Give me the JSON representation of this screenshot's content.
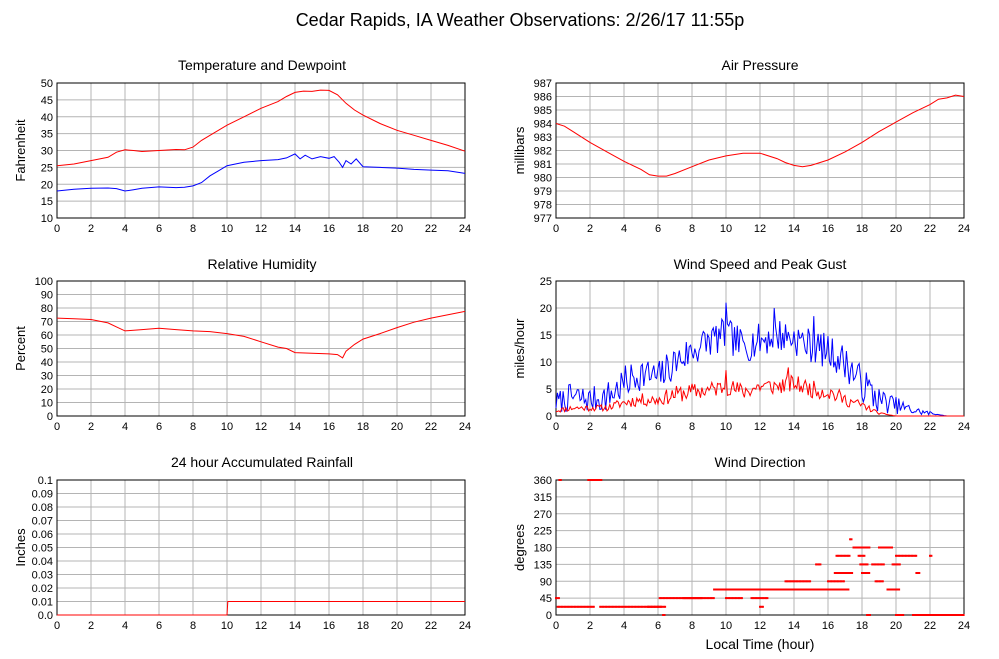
{
  "figure_title": "Cedar Rapids, IA Weather Observations: 2/26/17 11:55p",
  "xlabel": "Local Time (hour)",
  "colors": {
    "red": "#ff0000",
    "blue": "#0000ff",
    "grid": "#b4b4b4",
    "axis": "#000000"
  },
  "chart_data": [
    {
      "id": "temp",
      "type": "line",
      "title": "Temperature and Dewpoint",
      "ylabel": "Fahrenheit",
      "xlim": [
        0,
        24
      ],
      "ylim": [
        10,
        50
      ],
      "xticks": [
        "0",
        "2",
        "4",
        "6",
        "8",
        "10",
        "12",
        "14",
        "16",
        "18",
        "20",
        "22",
        "24"
      ],
      "yticks": [
        "10",
        "15",
        "20",
        "25",
        "30",
        "35",
        "40",
        "45",
        "50"
      ],
      "series": [
        {
          "color": "#ff0000",
          "style": "line",
          "x": [
            0,
            1,
            2,
            3,
            3.5,
            4,
            4.5,
            5,
            6,
            7,
            7.5,
            8,
            8.5,
            9,
            10,
            11,
            12,
            13,
            13.5,
            14,
            14.5,
            15,
            15.5,
            16,
            16.5,
            17,
            17.5,
            18,
            19,
            20,
            21,
            22,
            23,
            24
          ],
          "y": [
            25.5,
            26,
            27,
            28,
            29.5,
            30.2,
            30,
            29.7,
            30,
            30.3,
            30.2,
            31,
            33,
            34.5,
            37.5,
            40,
            42.5,
            44.5,
            46,
            47.2,
            47.6,
            47.5,
            47.9,
            47.8,
            46.5,
            44,
            42,
            40.5,
            38,
            36,
            34.5,
            33,
            31.5,
            29.8
          ]
        },
        {
          "color": "#0000ff",
          "style": "line",
          "x": [
            0,
            1,
            2,
            3,
            3.5,
            4,
            4.5,
            5,
            6,
            7,
            7.5,
            8,
            8.5,
            9,
            9.5,
            10,
            11,
            12,
            13,
            13.5,
            14,
            14.3,
            14.6,
            15,
            15.5,
            16,
            16.3,
            16.6,
            16.8,
            17,
            17.3,
            17.6,
            18,
            19,
            20,
            21,
            22,
            23,
            24
          ],
          "y": [
            18,
            18.5,
            18.8,
            18.9,
            18.7,
            18,
            18.4,
            18.8,
            19.2,
            19,
            19.1,
            19.5,
            20.5,
            22.5,
            24,
            25.5,
            26.5,
            27,
            27.3,
            27.8,
            29,
            27.5,
            28.6,
            27.5,
            28.2,
            27.7,
            28.2,
            26.5,
            25,
            27,
            26,
            27.5,
            25.2,
            25,
            24.8,
            24.4,
            24.2,
            24,
            23.2
          ]
        }
      ]
    },
    {
      "id": "pres",
      "type": "line",
      "title": "Air Pressure",
      "ylabel": "millibars",
      "xlim": [
        0,
        24
      ],
      "ylim": [
        977,
        987
      ],
      "xticks": [
        "0",
        "2",
        "4",
        "6",
        "8",
        "10",
        "12",
        "14",
        "16",
        "18",
        "20",
        "22",
        "24"
      ],
      "yticks": [
        "977",
        "978",
        "979",
        "980",
        "981",
        "982",
        "983",
        "984",
        "985",
        "986",
        "987"
      ],
      "series": [
        {
          "color": "#ff0000",
          "style": "line",
          "x": [
            0,
            0.5,
            1,
            2,
            3,
            4,
            5,
            5.5,
            6,
            6.5,
            7,
            8,
            9,
            10,
            11,
            12,
            13,
            13.5,
            14,
            14.5,
            15,
            16,
            17,
            18,
            19,
            20,
            21,
            22,
            22.5,
            23,
            23.5,
            24
          ],
          "y": [
            984,
            983.8,
            983.4,
            982.6,
            981.9,
            981.2,
            980.6,
            980.2,
            980.1,
            980.1,
            980.3,
            980.8,
            981.3,
            981.6,
            981.8,
            981.8,
            981.4,
            981.1,
            980.9,
            980.8,
            980.9,
            981.3,
            981.9,
            982.6,
            983.4,
            984.1,
            984.8,
            985.4,
            985.8,
            985.9,
            986.1,
            986
          ]
        }
      ]
    },
    {
      "id": "rh",
      "type": "line",
      "title": "Relative Humidity",
      "ylabel": "Percent",
      "xlim": [
        0,
        24
      ],
      "ylim": [
        0,
        100
      ],
      "xticks": [
        "0",
        "2",
        "4",
        "6",
        "8",
        "10",
        "12",
        "14",
        "16",
        "18",
        "20",
        "22",
        "24"
      ],
      "yticks": [
        "0",
        "10",
        "20",
        "30",
        "40",
        "50",
        "60",
        "70",
        "80",
        "90",
        "100"
      ],
      "series": [
        {
          "color": "#ff0000",
          "style": "line",
          "x": [
            0,
            1,
            2,
            3,
            3.5,
            4,
            5,
            6,
            7,
            8,
            9,
            10,
            11,
            12,
            13,
            13.5,
            14,
            15,
            16,
            16.5,
            16.8,
            17,
            17.5,
            18,
            19,
            20,
            21,
            22,
            23,
            24
          ],
          "y": [
            72.5,
            72,
            71.5,
            69,
            66,
            63,
            64,
            65,
            64,
            63,
            62.5,
            61,
            59,
            55,
            51,
            50,
            47,
            46.5,
            46,
            45.5,
            43,
            48,
            53,
            57,
            61,
            65.5,
            69.5,
            72.5,
            75,
            77.5
          ]
        }
      ]
    },
    {
      "id": "wind",
      "type": "line",
      "title": "Wind Speed and Peak Gust",
      "ylabel": "miles/hour",
      "xlim": [
        0,
        24
      ],
      "ylim": [
        0,
        25
      ],
      "xticks": [
        "0",
        "2",
        "4",
        "6",
        "8",
        "10",
        "12",
        "14",
        "16",
        "18",
        "20",
        "22",
        "24"
      ],
      "yticks": [
        "0",
        "5",
        "10",
        "15",
        "20",
        "25"
      ],
      "series": [
        {
          "color": "#0000ff",
          "style": "line",
          "x": [
            0,
            1,
            2,
            3,
            4,
            5,
            6,
            7,
            8,
            9,
            10,
            11,
            12,
            13,
            14,
            15,
            16,
            17,
            18,
            19,
            20,
            21,
            22,
            23,
            24
          ],
          "y": [
            2.5,
            3.5,
            3,
            3.5,
            6,
            8,
            7,
            10,
            12,
            14,
            15,
            13,
            14,
            15,
            14.5,
            13,
            12,
            10,
            6,
            3,
            2,
            1,
            0.5,
            0,
            0
          ],
          "jitter": 3.2,
          "jitter_seed": 7,
          "spikes": [
            [
              10,
              21
            ],
            [
              12.8,
              20
            ],
            [
              15.2,
              18.5
            ]
          ]
        },
        {
          "color": "#ff0000",
          "style": "line",
          "x": [
            0,
            1,
            2,
            3,
            4,
            5,
            6,
            7,
            8,
            9,
            10,
            11,
            12,
            13,
            14,
            15,
            16,
            17,
            18,
            19,
            20,
            21,
            22,
            23,
            24
          ],
          "y": [
            1,
            1.5,
            1.5,
            1.5,
            2.5,
            3,
            3,
            4,
            4.5,
            4.8,
            5.5,
            4.5,
            5.5,
            5.5,
            6,
            5,
            4.5,
            3,
            2,
            0.5,
            0,
            0,
            0,
            0,
            0
          ],
          "jitter": 1.6,
          "jitter_seed": 11,
          "spikes": [
            [
              13.7,
              9
            ],
            [
              10,
              8.5
            ]
          ]
        }
      ]
    },
    {
      "id": "rain",
      "type": "line",
      "title": "24 hour Accumulated Rainfall",
      "ylabel": "Inches",
      "xlim": [
        0,
        24
      ],
      "ylim": [
        0,
        0.1
      ],
      "xticks": [
        "0",
        "2",
        "4",
        "6",
        "8",
        "10",
        "12",
        "14",
        "16",
        "18",
        "20",
        "22",
        "24"
      ],
      "yticks": [
        "0.0",
        "0.01",
        "0.02",
        "0.03",
        "0.04",
        "0.05",
        "0.06",
        "0.07",
        "0.08",
        "0.09",
        "0.1"
      ],
      "series": [
        {
          "color": "#ff0000",
          "style": "line",
          "x": [
            0,
            10,
            10.05,
            24
          ],
          "y": [
            0,
            0,
            0.01,
            0.01
          ]
        }
      ]
    },
    {
      "id": "dir",
      "type": "scatter",
      "title": "Wind Direction",
      "ylabel": "degrees",
      "xlim": [
        0,
        24
      ],
      "ylim": [
        0,
        360
      ],
      "xticks": [
        "0",
        "2",
        "4",
        "6",
        "8",
        "10",
        "12",
        "14",
        "16",
        "18",
        "20",
        "22",
        "24"
      ],
      "yticks": [
        "0",
        "45",
        "90",
        "135",
        "180",
        "225",
        "270",
        "315",
        "360"
      ],
      "series": [
        {
          "color": "#ff0000",
          "style": "points",
          "segments": [
            [
              0.0,
              0.2,
              45
            ],
            [
              0.1,
              2.3,
              22
            ],
            [
              0.2,
              0.3,
              360
            ],
            [
              1.9,
              2.7,
              360
            ],
            [
              2.6,
              6.2,
              22
            ],
            [
              5.4,
              6.5,
              22
            ],
            [
              6.1,
              8.6,
              45
            ],
            [
              6.3,
              6.4,
              0
            ],
            [
              7.5,
              9.3,
              45
            ],
            [
              9.3,
              10.5,
              68
            ],
            [
              10.0,
              11.0,
              45
            ],
            [
              10.5,
              13.0,
              68
            ],
            [
              11.5,
              12.5,
              45
            ],
            [
              12.0,
              12.2,
              22
            ],
            [
              12.8,
              15.5,
              68
            ],
            [
              13.5,
              15.0,
              90
            ],
            [
              15.3,
              15.6,
              135
            ],
            [
              15.5,
              17.2,
              68
            ],
            [
              16.0,
              17.0,
              90
            ],
            [
              16.4,
              17.5,
              112
            ],
            [
              16.5,
              17.3,
              158
            ],
            [
              17.5,
              18.5,
              180
            ],
            [
              17.3,
              17.4,
              202
            ],
            [
              17.8,
              18.2,
              158
            ],
            [
              17.9,
              18.4,
              135
            ],
            [
              18.0,
              18.5,
              112
            ],
            [
              18.3,
              18.5,
              0
            ],
            [
              18.6,
              19.3,
              135
            ],
            [
              18.8,
              19.3,
              90
            ],
            [
              19.0,
              19.8,
              180
            ],
            [
              19.5,
              20.2,
              68
            ],
            [
              19.8,
              20.3,
              135
            ],
            [
              20.0,
              21.2,
              158
            ],
            [
              20.0,
              20.5,
              0
            ],
            [
              21.0,
              24.0,
              0
            ],
            [
              21.2,
              21.4,
              112
            ],
            [
              22.0,
              22.1,
              158
            ]
          ]
        }
      ]
    }
  ]
}
